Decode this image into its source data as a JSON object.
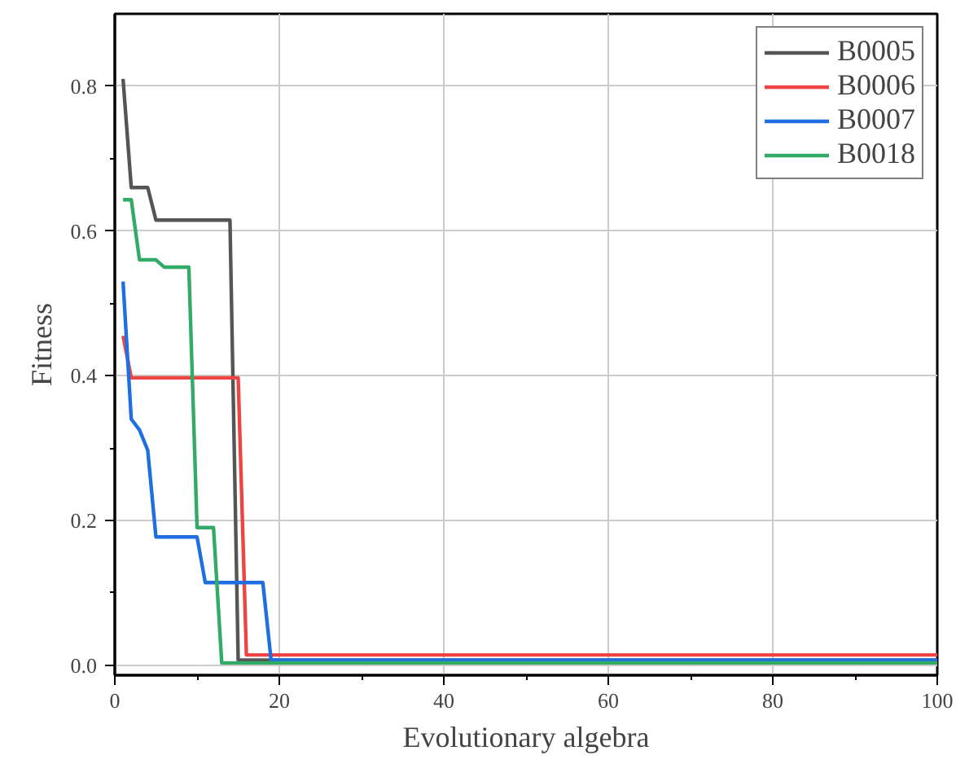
{
  "chart_data": {
    "type": "line",
    "xlabel": "Evolutionary algebra",
    "ylabel": "Fitness",
    "xlim": [
      0,
      100
    ],
    "ylim": [
      -0.014,
      0.9
    ],
    "xticks": [
      0,
      20,
      40,
      60,
      80,
      100
    ],
    "yticks": [
      {
        "value": 0,
        "label": "0.0"
      },
      0.2,
      0.4,
      0.6,
      0.8
    ],
    "grid": true,
    "legend": "top right",
    "line_style": "solid",
    "series": [
      {
        "name": "B0005",
        "color": "#555555",
        "x": [
          1,
          2,
          3,
          4,
          5,
          14,
          15,
          100
        ],
        "values": [
          0.81,
          0.66,
          0.66,
          0.66,
          0.615,
          0.615,
          0.007,
          0.007
        ]
      },
      {
        "name": "B0006",
        "color": "#ee4444",
        "x": [
          1,
          2,
          15,
          16,
          100
        ],
        "values": [
          0.455,
          0.397,
          0.397,
          0.014,
          0.014
        ]
      },
      {
        "name": "B0007",
        "color": "#1f6fe0",
        "x": [
          1,
          2,
          3,
          4,
          5,
          10,
          11,
          18,
          19,
          100
        ],
        "values": [
          0.53,
          0.34,
          0.325,
          0.297,
          0.177,
          0.177,
          0.114,
          0.114,
          0.007,
          0.007
        ]
      },
      {
        "name": "B0018",
        "color": "#33aa66",
        "x": [
          1,
          2,
          3,
          5,
          6,
          9,
          10,
          12,
          13,
          100
        ],
        "values": [
          0.643,
          0.643,
          0.56,
          0.56,
          0.55,
          0.55,
          0.19,
          0.19,
          0.003,
          0.003
        ]
      }
    ]
  }
}
